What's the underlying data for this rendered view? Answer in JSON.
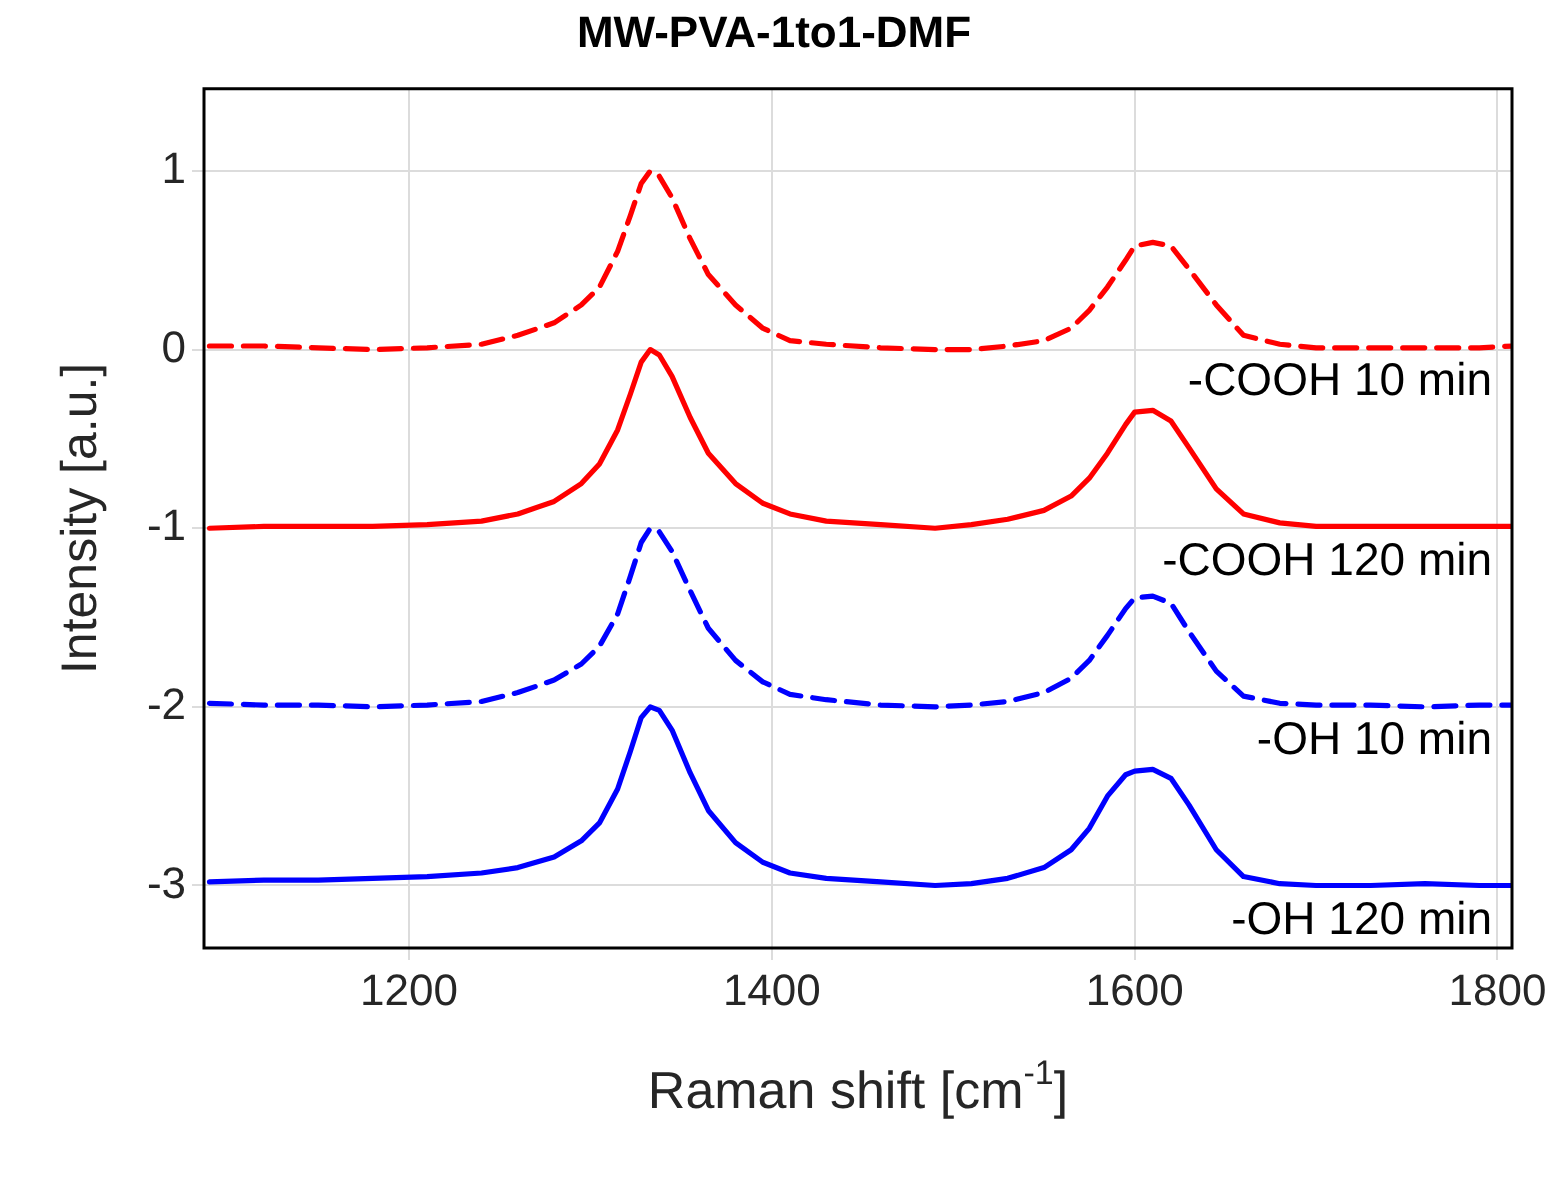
{
  "chart_data": {
    "type": "line",
    "title": "MW-PVA-1to1-DMF",
    "xlabel": "Raman shift [cm$^{-1}$]",
    "ylabel": "Intensity [a.u.]",
    "xlim": [
      1087,
      1808
    ],
    "xticks": [
      1200,
      1400,
      1600,
      1800
    ],
    "ylim": [
      -3.35,
      1.46
    ],
    "yticks": [
      -3,
      -2,
      -1,
      0,
      1
    ],
    "grid": true,
    "legend": false,
    "marker": "none",
    "x": [
      1090,
      1120,
      1150,
      1180,
      1210,
      1240,
      1260,
      1280,
      1295,
      1305,
      1315,
      1322,
      1328,
      1333,
      1338,
      1345,
      1355,
      1365,
      1380,
      1395,
      1410,
      1430,
      1460,
      1490,
      1510,
      1530,
      1550,
      1565,
      1575,
      1585,
      1595,
      1600,
      1610,
      1620,
      1630,
      1645,
      1660,
      1680,
      1700,
      1730,
      1760,
      1790,
      1808
    ],
    "series": [
      {
        "name": "-COOH 10 min",
        "color": "#ff0000",
        "line_style": "dashed",
        "values": [
          0.02,
          0.02,
          0.01,
          0.0,
          0.01,
          0.03,
          0.08,
          0.15,
          0.25,
          0.35,
          0.55,
          0.75,
          0.93,
          1.0,
          0.97,
          0.85,
          0.62,
          0.42,
          0.25,
          0.12,
          0.05,
          0.03,
          0.01,
          0.0,
          0.0,
          0.02,
          0.05,
          0.12,
          0.22,
          0.35,
          0.5,
          0.58,
          0.6,
          0.58,
          0.45,
          0.25,
          0.08,
          0.03,
          0.01,
          0.01,
          0.01,
          0.01,
          0.02
        ]
      },
      {
        "name": "-COOH 120 min",
        "color": "#ff0000",
        "line_style": "solid",
        "values": [
          -1.0,
          -0.99,
          -0.99,
          -0.99,
          -0.98,
          -0.96,
          -0.92,
          -0.85,
          -0.75,
          -0.64,
          -0.45,
          -0.25,
          -0.07,
          0.0,
          -0.03,
          -0.15,
          -0.38,
          -0.58,
          -0.75,
          -0.86,
          -0.92,
          -0.96,
          -0.98,
          -1.0,
          -0.98,
          -0.95,
          -0.9,
          -0.82,
          -0.72,
          -0.58,
          -0.42,
          -0.35,
          -0.34,
          -0.4,
          -0.55,
          -0.78,
          -0.92,
          -0.97,
          -0.99,
          -0.99,
          -0.99,
          -0.99,
          -0.99
        ]
      },
      {
        "name": "-OH 10 min",
        "color": "#0000ff",
        "line_style": "dashed",
        "values": [
          -1.98,
          -1.99,
          -1.99,
          -2.0,
          -1.99,
          -1.97,
          -1.92,
          -1.85,
          -1.76,
          -1.66,
          -1.48,
          -1.27,
          -1.08,
          -1.0,
          -1.02,
          -1.13,
          -1.35,
          -1.56,
          -1.74,
          -1.86,
          -1.93,
          -1.96,
          -1.99,
          -2.0,
          -1.99,
          -1.97,
          -1.92,
          -1.84,
          -1.74,
          -1.6,
          -1.45,
          -1.39,
          -1.38,
          -1.42,
          -1.58,
          -1.8,
          -1.94,
          -1.98,
          -1.99,
          -1.99,
          -2.0,
          -1.99,
          -1.99
        ]
      },
      {
        "name": "-OH 120 min",
        "color": "#0000ff",
        "line_style": "solid",
        "values": [
          -2.98,
          -2.97,
          -2.97,
          -2.96,
          -2.95,
          -2.93,
          -2.9,
          -2.84,
          -2.75,
          -2.65,
          -2.46,
          -2.25,
          -2.06,
          -2.0,
          -2.02,
          -2.13,
          -2.37,
          -2.58,
          -2.76,
          -2.87,
          -2.93,
          -2.96,
          -2.98,
          -3.0,
          -2.99,
          -2.96,
          -2.9,
          -2.8,
          -2.68,
          -2.5,
          -2.38,
          -2.36,
          -2.35,
          -2.4,
          -2.55,
          -2.8,
          -2.95,
          -2.99,
          -3.0,
          -3.0,
          -2.99,
          -3.0,
          -3.0
        ]
      }
    ]
  }
}
